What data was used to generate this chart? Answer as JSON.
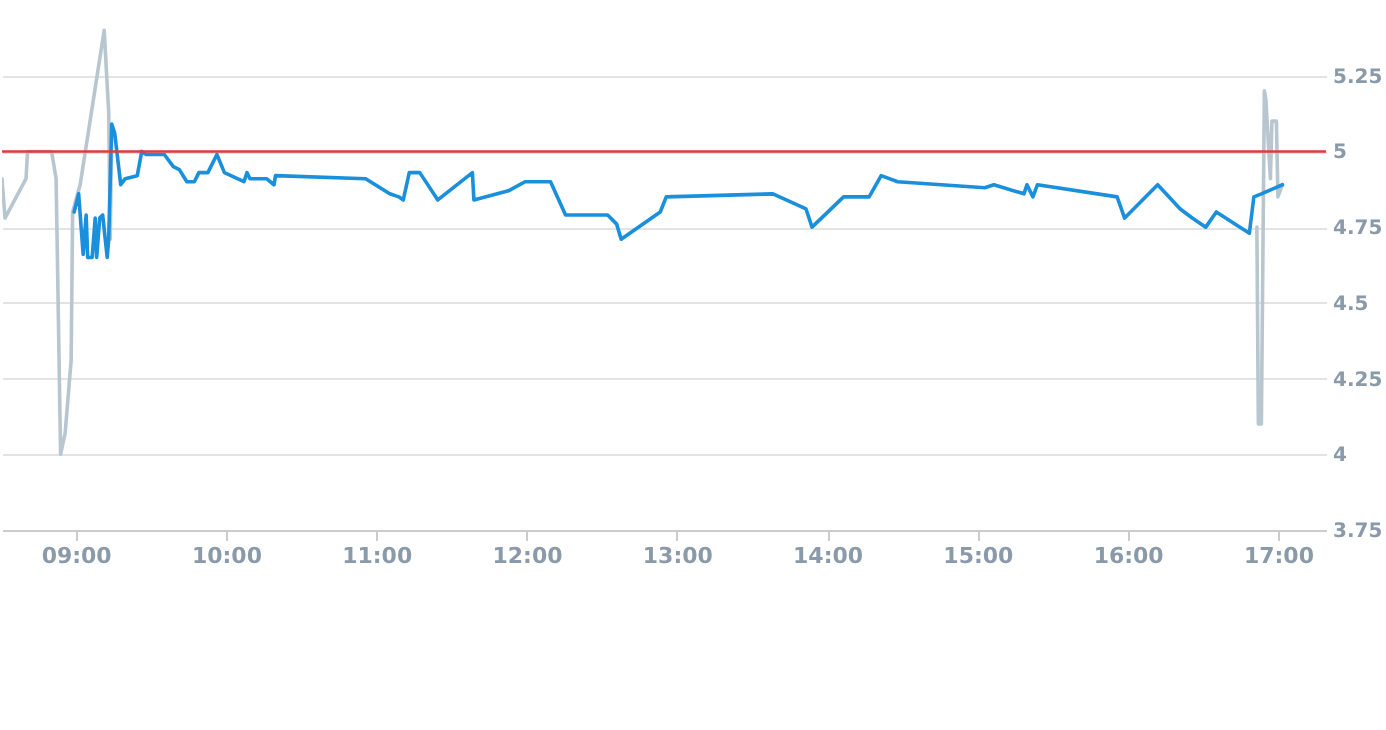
{
  "chart_data": {
    "type": "line",
    "xlim": [
      8.51,
      17.32
    ],
    "xticks": [
      {
        "value": 9,
        "label": "09:00"
      },
      {
        "value": 10,
        "label": "10:00"
      },
      {
        "value": 11,
        "label": "11:00"
      },
      {
        "value": 12,
        "label": "12:00"
      },
      {
        "value": 13,
        "label": "13:00"
      },
      {
        "value": 14,
        "label": "14:00"
      },
      {
        "value": 15,
        "label": "15:00"
      },
      {
        "value": 16,
        "label": "16:00"
      },
      {
        "value": 17,
        "label": "17:00"
      }
    ],
    "ylim": [
      3.75,
      5.5
    ],
    "yticks": [
      3.75,
      4,
      4.25,
      4.5,
      4.75,
      5,
      5.25
    ],
    "grid": "y",
    "marker": "none",
    "line_style": "solid",
    "ref_lines": [
      {
        "axis": "y",
        "value": 5,
        "color": "#e03a3a"
      }
    ],
    "series": [
      {
        "color": "#b8c6cf",
        "x": [
          8.51,
          8.53,
          8.67,
          8.68,
          8.84,
          8.87,
          8.9,
          8.93,
          8.97,
          8.98,
          9.03,
          9.19,
          9.22,
          9.23,
          9.24,
          12.0,
          16.86,
          16.87,
          16.89,
          16.91,
          16.92,
          16.95,
          16.96,
          16.99,
          17.0,
          17.03
        ],
        "values": [
          4.91,
          4.78,
          4.91,
          5.0,
          5.0,
          4.91,
          4.0,
          4.07,
          4.31,
          4.8,
          4.89,
          5.4,
          5.13,
          4.71,
          5.06,
          null,
          4.75,
          4.1,
          4.1,
          5.2,
          5.17,
          4.91,
          5.1,
          5.1,
          4.85,
          4.89
        ]
      },
      {
        "color": "#1a8fdc",
        "x": [
          8.99,
          9.02,
          9.05,
          9.07,
          9.08,
          9.11,
          9.13,
          9.14,
          9.16,
          9.18,
          9.21,
          9.22,
          9.24,
          9.26,
          9.3,
          9.33,
          9.41,
          9.44,
          9.47,
          9.59,
          9.65,
          9.69,
          9.74,
          9.79,
          9.82,
          9.88,
          9.94,
          9.99,
          10.12,
          10.14,
          10.16,
          10.27,
          10.32,
          10.33,
          10.93,
          11.09,
          11.15,
          11.18,
          11.22,
          11.29,
          11.41,
          11.64,
          11.65,
          11.88,
          11.99,
          12.16,
          12.26,
          12.54,
          12.6,
          12.63,
          12.89,
          12.93,
          13.64,
          13.86,
          13.9,
          14.11,
          14.28,
          14.36,
          14.47,
          15.05,
          15.11,
          15.31,
          15.33,
          15.37,
          15.4,
          15.93,
          15.98,
          16.2,
          16.35,
          16.43,
          16.52,
          16.59,
          16.81,
          16.84,
          16.89,
          17.03
        ],
        "values": [
          4.8,
          4.86,
          4.66,
          4.79,
          4.65,
          4.65,
          4.78,
          4.65,
          4.78,
          4.79,
          4.65,
          4.71,
          5.09,
          5.06,
          4.89,
          4.91,
          4.92,
          5.0,
          4.99,
          4.99,
          4.95,
          4.94,
          4.9,
          4.9,
          4.93,
          4.93,
          4.99,
          4.93,
          4.9,
          4.93,
          4.91,
          4.91,
          4.89,
          4.92,
          4.91,
          4.86,
          4.85,
          4.84,
          4.93,
          4.93,
          4.84,
          4.93,
          4.84,
          4.87,
          4.9,
          4.9,
          4.79,
          4.79,
          4.76,
          4.71,
          4.8,
          4.85,
          4.86,
          4.81,
          4.75,
          4.85,
          4.85,
          4.92,
          4.9,
          4.88,
          4.89,
          4.86,
          4.89,
          4.85,
          4.89,
          4.85,
          4.78,
          4.89,
          4.81,
          4.78,
          4.75,
          4.8,
          4.73,
          4.85,
          4.86,
          4.89
        ]
      }
    ]
  }
}
